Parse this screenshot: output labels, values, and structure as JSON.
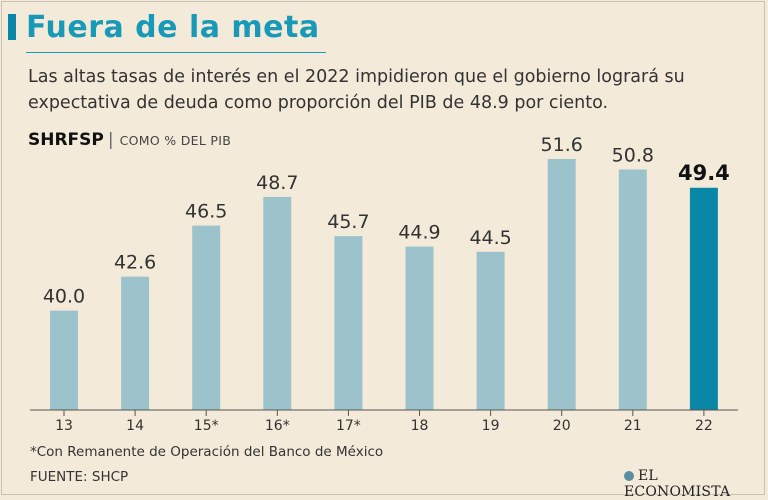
{
  "header": {
    "title": "Fuera de la meta",
    "subtitle": "Las altas tasas de interés en el 2022 impidieron que el gobierno logrará su expectativa de deuda como proporción del PIB de 48.9 por ciento."
  },
  "chart_label": {
    "main": "SHRFSP",
    "separator": "|",
    "sub": "COMO % DEL PIB"
  },
  "chart_data": {
    "type": "bar",
    "title": "SHRFSP",
    "ylabel": "COMO % DEL PIB",
    "xlabel": "",
    "categories": [
      "13",
      "14",
      "15*",
      "16*",
      "17*",
      "18",
      "19",
      "20",
      "21",
      "22"
    ],
    "values": [
      40.0,
      42.6,
      46.5,
      48.7,
      45.7,
      44.9,
      44.5,
      51.6,
      50.8,
      49.4
    ],
    "value_labels": [
      "40.0",
      "42.6",
      "46.5",
      "48.7",
      "45.7",
      "44.9",
      "44.5",
      "51.6",
      "50.8",
      "49.4"
    ],
    "highlight_index": 9,
    "ylim": [
      32.4,
      51.6
    ],
    "grid": false,
    "colors": {
      "bar": "#9cc2cc",
      "highlight": "#0a87a6",
      "axis": "#555555",
      "label": "#333333",
      "highlight_label": "#111111"
    }
  },
  "footnote": "*Con Remanente de Operación del Banco de México",
  "source": "FUENTE: SHCP",
  "logo": "EL ECONOMISTA",
  "colors": {
    "background": "#f3ead9",
    "accent": "#1899b8"
  }
}
